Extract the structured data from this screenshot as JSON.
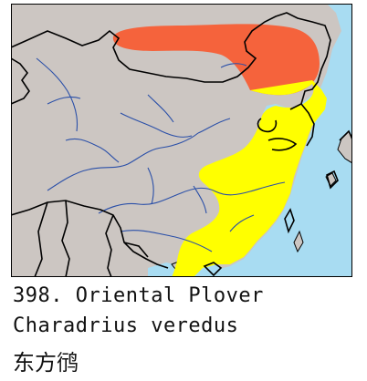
{
  "map": {
    "colors": {
      "land": "#ccc6c2",
      "sea": "#a8dcf2",
      "border": "#000000",
      "river": "#2a4fa8",
      "breeding_range": "#f5633c",
      "migration_range": "#ffff00"
    },
    "layers": [
      "land",
      "sea",
      "rivers",
      "country-borders",
      "breeding-range",
      "migration-range"
    ]
  },
  "caption": {
    "line1": "398. Oriental Plover",
    "line2": "Charadrius veredus",
    "line3": "东方鸻"
  }
}
